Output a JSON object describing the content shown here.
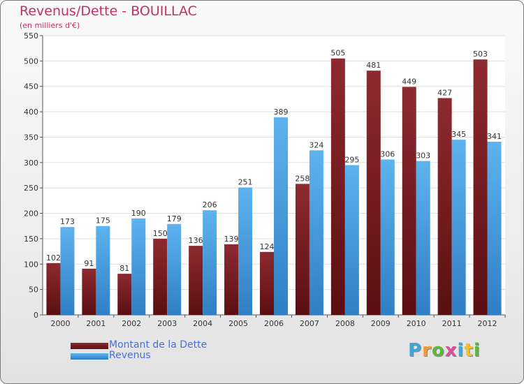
{
  "title": "Revenus/Dette - BOUILLAC",
  "subtitle": "(en milliers d'€)",
  "colors": {
    "dette": "#7b1e23",
    "revenus": "#4fa6e6",
    "title": "#c0306a",
    "legend_text": "#4a6fd8"
  },
  "logo": {
    "text": "Proxiti",
    "letters": [
      "P",
      "r",
      "o",
      "x",
      "i",
      "t",
      "i"
    ],
    "letter_colors": [
      "#3da8d8",
      "#f29a2e",
      "#5cb83a",
      "#d94f9a",
      "#3da8d8",
      "#f2c12e",
      "#5cb83a"
    ]
  },
  "chart_data": {
    "type": "bar",
    "title": "Revenus/Dette - BOUILLAC",
    "subtitle": "(en milliers d'€)",
    "categories": [
      "2000",
      "2001",
      "2002",
      "2003",
      "2004",
      "2005",
      "2006",
      "2007",
      "2008",
      "2009",
      "2010",
      "2011",
      "2012"
    ],
    "series": [
      {
        "name": "Montant de la Dette",
        "color": "#7b1e23",
        "values": [
          102,
          91,
          81,
          150,
          136,
          139,
          124,
          258,
          505,
          481,
          449,
          427,
          503
        ]
      },
      {
        "name": "Revenus",
        "color": "#4fa6e6",
        "values": [
          173,
          175,
          190,
          179,
          206,
          251,
          389,
          324,
          295,
          306,
          303,
          345,
          341
        ]
      }
    ],
    "ylim": [
      0,
      550
    ],
    "yticks": [
      0,
      50,
      100,
      150,
      200,
      250,
      300,
      350,
      400,
      450,
      500,
      550
    ],
    "grid": true,
    "legend": "bottom-left"
  }
}
